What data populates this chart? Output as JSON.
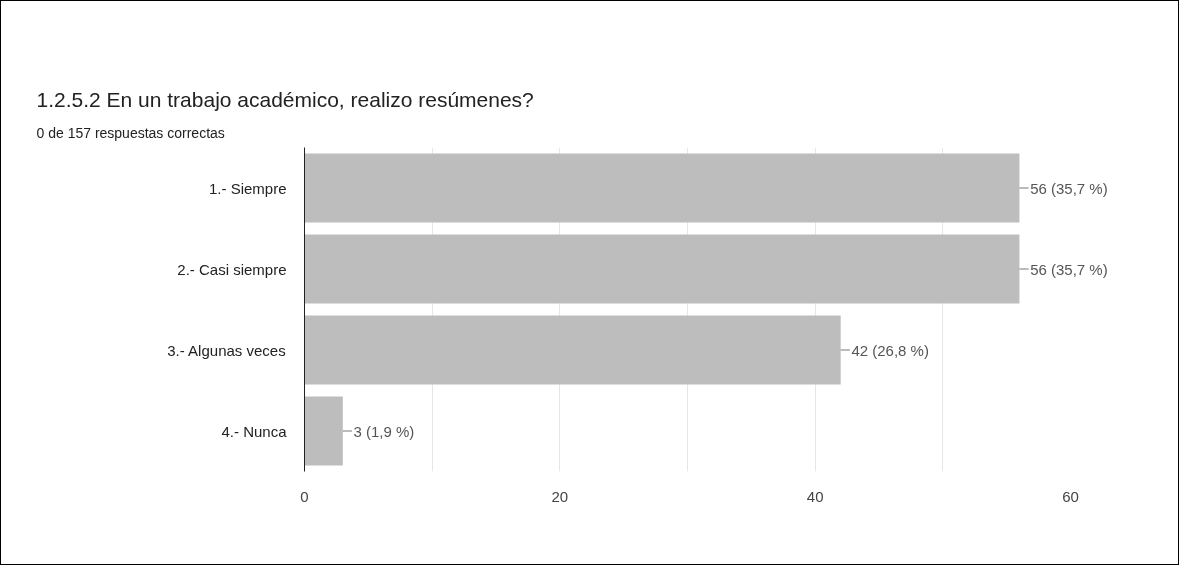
{
  "chart_data": {
    "type": "bar",
    "orientation": "horizontal",
    "title": "1.2.5.2 En un trabajo académico, realizo resúmenes?",
    "subtitle": "0 de 157 respuestas correctas",
    "categories": [
      "1.- Siempre",
      "2.- Casi siempre",
      "3.- Algunas veces",
      "4.- Nunca"
    ],
    "values": [
      56,
      56,
      42,
      3
    ],
    "value_labels": [
      "56 (35,7 %)",
      "56 (35,7 %)",
      "42 (26,8 %)",
      "3 (1,9 %)"
    ],
    "color": "#bdbdbd",
    "xlim": [
      0,
      60
    ],
    "xticks": [
      0,
      {
        "value": 10,
        "label": null
      },
      20,
      {
        "value": 30,
        "label": null
      },
      40,
      {
        "value": 50,
        "label": null
      },
      60
    ],
    "grid": "x"
  }
}
